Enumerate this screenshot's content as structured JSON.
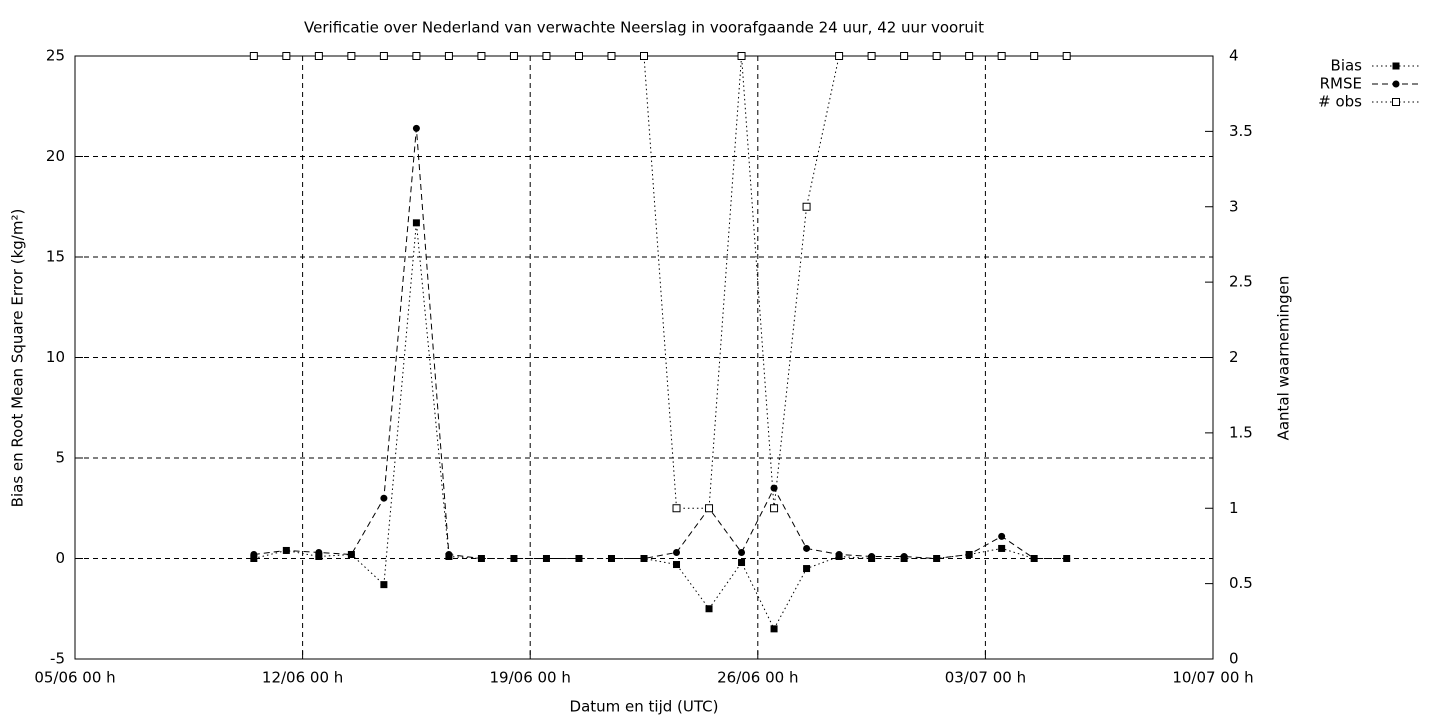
{
  "chart_data": {
    "type": "line",
    "title": "Verificatie over Nederland van verwachte Neerslag in voorafgaande 24 uur, 42 uur vooruit",
    "xlabel": "Datum en tijd (UTC)",
    "ylabel": "Bias en Root Mean Square Error (kg/m²)",
    "y2label": "Aantal waarnemingen",
    "x": [
      5.5,
      6.5,
      7.5,
      8.5,
      9.5,
      10.5,
      11.5,
      12.5,
      13.5,
      14.5,
      15.5,
      16.5,
      17.5,
      18.5,
      19.5,
      20.5,
      21.5,
      22.5,
      23.5,
      24.5,
      25.5,
      26.5,
      27.5,
      28.5,
      29.5,
      30.5
    ],
    "xlim": [
      0,
      35
    ],
    "xticks": [
      {
        "value": 0,
        "label": "05/06 00 h"
      },
      {
        "value": 7,
        "label": "12/06 00 h"
      },
      {
        "value": 14,
        "label": "19/06 00 h"
      },
      {
        "value": 21,
        "label": "26/06 00 h"
      },
      {
        "value": 28,
        "label": "03/07 00 h"
      },
      {
        "value": 35,
        "label": "10/07 00 h"
      }
    ],
    "ylim": [
      -5,
      25
    ],
    "yticks": [
      -5,
      0,
      5,
      10,
      15,
      20,
      25
    ],
    "y2lim": [
      0,
      4
    ],
    "y2ticks": [
      0,
      0.5,
      1,
      1.5,
      2,
      2.5,
      3,
      3.5,
      4
    ],
    "grid": true,
    "legend": "outside-top-right",
    "series": [
      {
        "name": "Bias",
        "color": "#000000",
        "dash": "dotted",
        "marker": "filled-square",
        "values": [
          0,
          0.4,
          0.1,
          0.2,
          -1.3,
          16.7,
          0.1,
          0,
          0,
          0,
          0,
          0,
          0,
          -0.3,
          -2.5,
          -0.2,
          -3.5,
          -0.5,
          0.1,
          0,
          0,
          0,
          0.2,
          0.5,
          0,
          0
        ]
      },
      {
        "name": "RMSE",
        "color": "#000000",
        "dash": "dashed",
        "marker": "filled-circle",
        "values": [
          0.2,
          0.4,
          0.3,
          0.2,
          3.0,
          21.4,
          0.2,
          0,
          0,
          0,
          0,
          0,
          0,
          0.3,
          2.5,
          0.3,
          3.5,
          0.5,
          0.2,
          0.1,
          0.1,
          0,
          0.2,
          1.1,
          0,
          0
        ]
      },
      {
        "name": "# obs",
        "color": "#000000",
        "dash": "dotted",
        "marker": "open-square",
        "axis": "y2",
        "values": [
          4,
          4,
          4,
          4,
          4,
          4,
          4,
          4,
          4,
          4,
          4,
          4,
          4,
          1,
          1,
          4,
          1,
          3,
          4,
          4,
          4,
          4,
          4,
          4,
          4,
          4
        ]
      }
    ]
  }
}
